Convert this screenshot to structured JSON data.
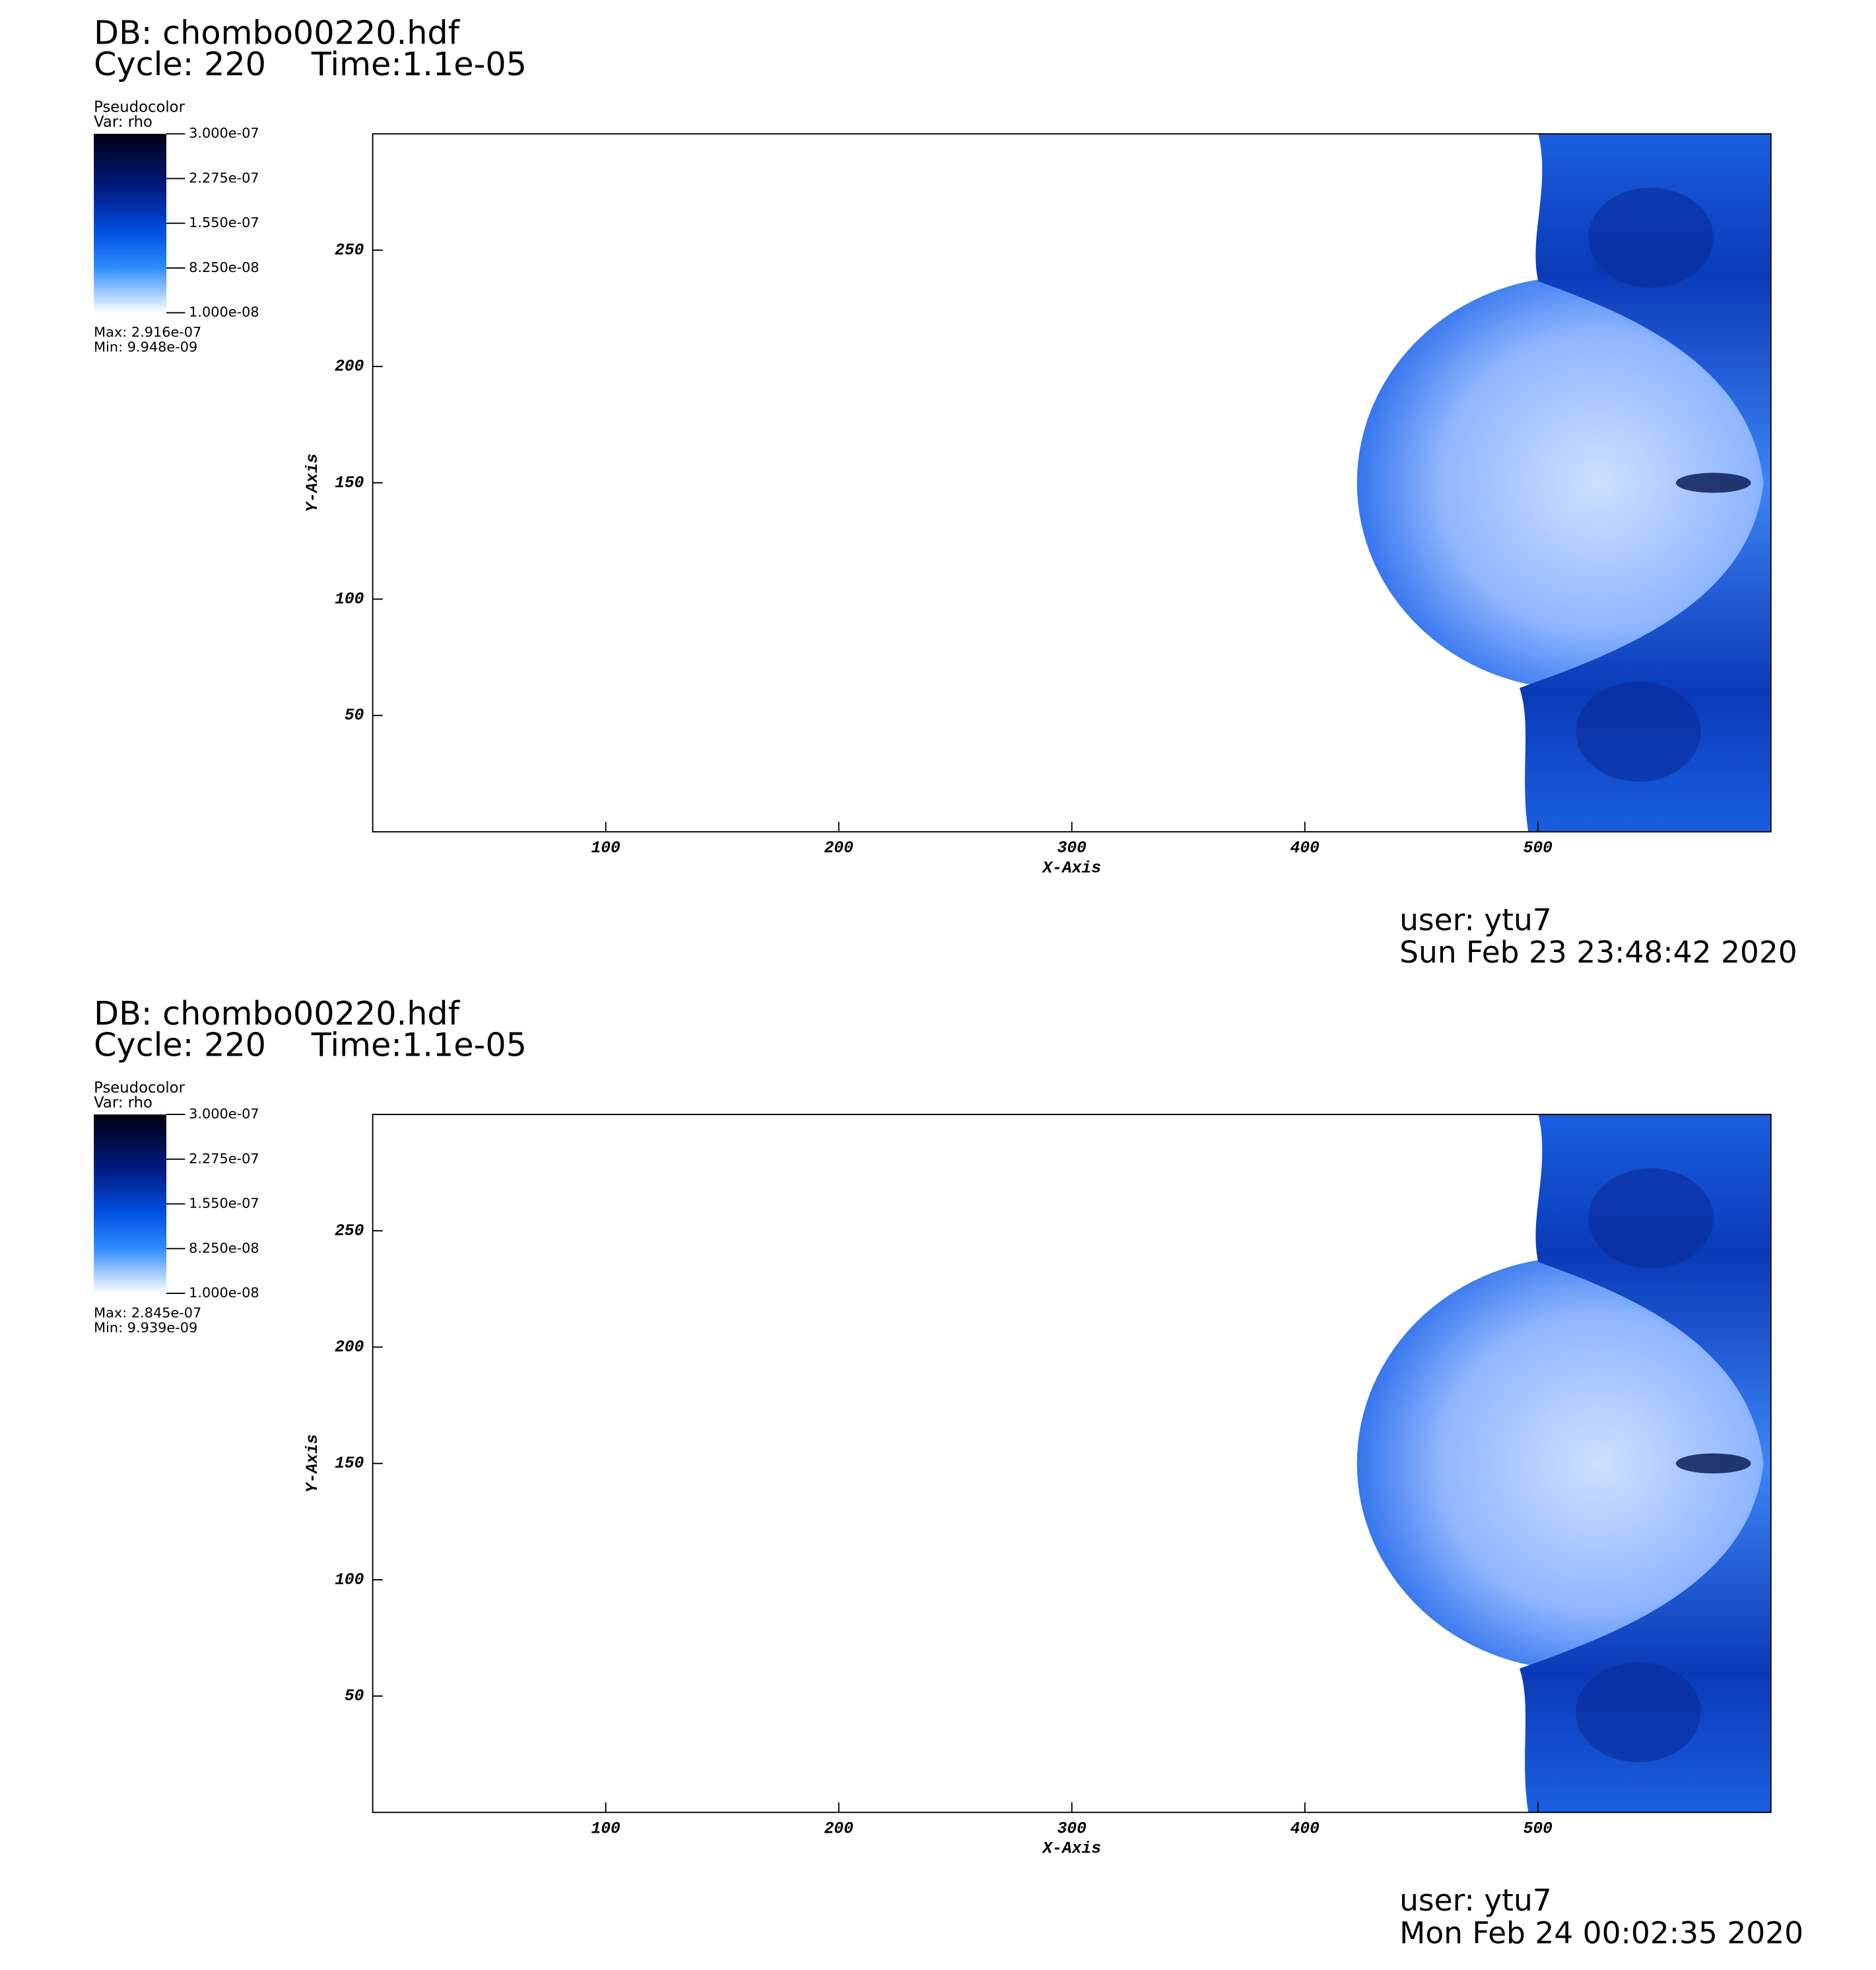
{
  "chart_data": [
    {
      "type": "pseudocolor",
      "db": "DB: chombo00220.hdf",
      "cycle": "Cycle: 220",
      "time": "Time:1.1e-05",
      "legend_title": "Pseudocolor",
      "variable": "Var: rho",
      "colorbar_lim": [
        1e-08,
        3e-07
      ],
      "colorbar_ticks": [
        {
          "value": 3e-07,
          "label": "3.000e-07"
        },
        {
          "value": 2.275e-07,
          "label": "2.275e-07"
        },
        {
          "value": 1.55e-07,
          "label": "1.550e-07"
        },
        {
          "value": 8.25e-08,
          "label": "8.250e-08"
        },
        {
          "value": 1e-08,
          "label": "1.000e-08"
        }
      ],
      "max_text": "Max:  2.916e-07",
      "min_text": "Min:  9.948e-09",
      "xlabel": "X-Axis",
      "ylabel": "Y-Axis",
      "xlim": [
        0,
        600
      ],
      "ylim": [
        0,
        300
      ],
      "xticks": [
        100,
        200,
        300,
        400,
        500
      ],
      "yticks": [
        50,
        100,
        150,
        200,
        250
      ],
      "user": "user: ytu7",
      "date": "Sun Feb 23 23:48:42 2020"
    },
    {
      "type": "pseudocolor",
      "db": "DB: chombo00220.hdf",
      "cycle": "Cycle: 220",
      "time": "Time:1.1e-05",
      "legend_title": "Pseudocolor",
      "variable": "Var: rho",
      "colorbar_lim": [
        1e-08,
        3e-07
      ],
      "colorbar_ticks": [
        {
          "value": 3e-07,
          "label": "3.000e-07"
        },
        {
          "value": 2.275e-07,
          "label": "2.275e-07"
        },
        {
          "value": 1.55e-07,
          "label": "1.550e-07"
        },
        {
          "value": 8.25e-08,
          "label": "8.250e-08"
        },
        {
          "value": 1e-08,
          "label": "1.000e-08"
        }
      ],
      "max_text": "Max:  2.845e-07",
      "min_text": "Min:  9.939e-09",
      "xlabel": "X-Axis",
      "ylabel": "Y-Axis",
      "xlim": [
        0,
        600
      ],
      "ylim": [
        0,
        300
      ],
      "xticks": [
        100,
        200,
        300,
        400,
        500
      ],
      "yticks": [
        50,
        100,
        150,
        200,
        250
      ],
      "user": "user: ytu7",
      "date": "Mon Feb 24 00:02:35 2020"
    }
  ]
}
